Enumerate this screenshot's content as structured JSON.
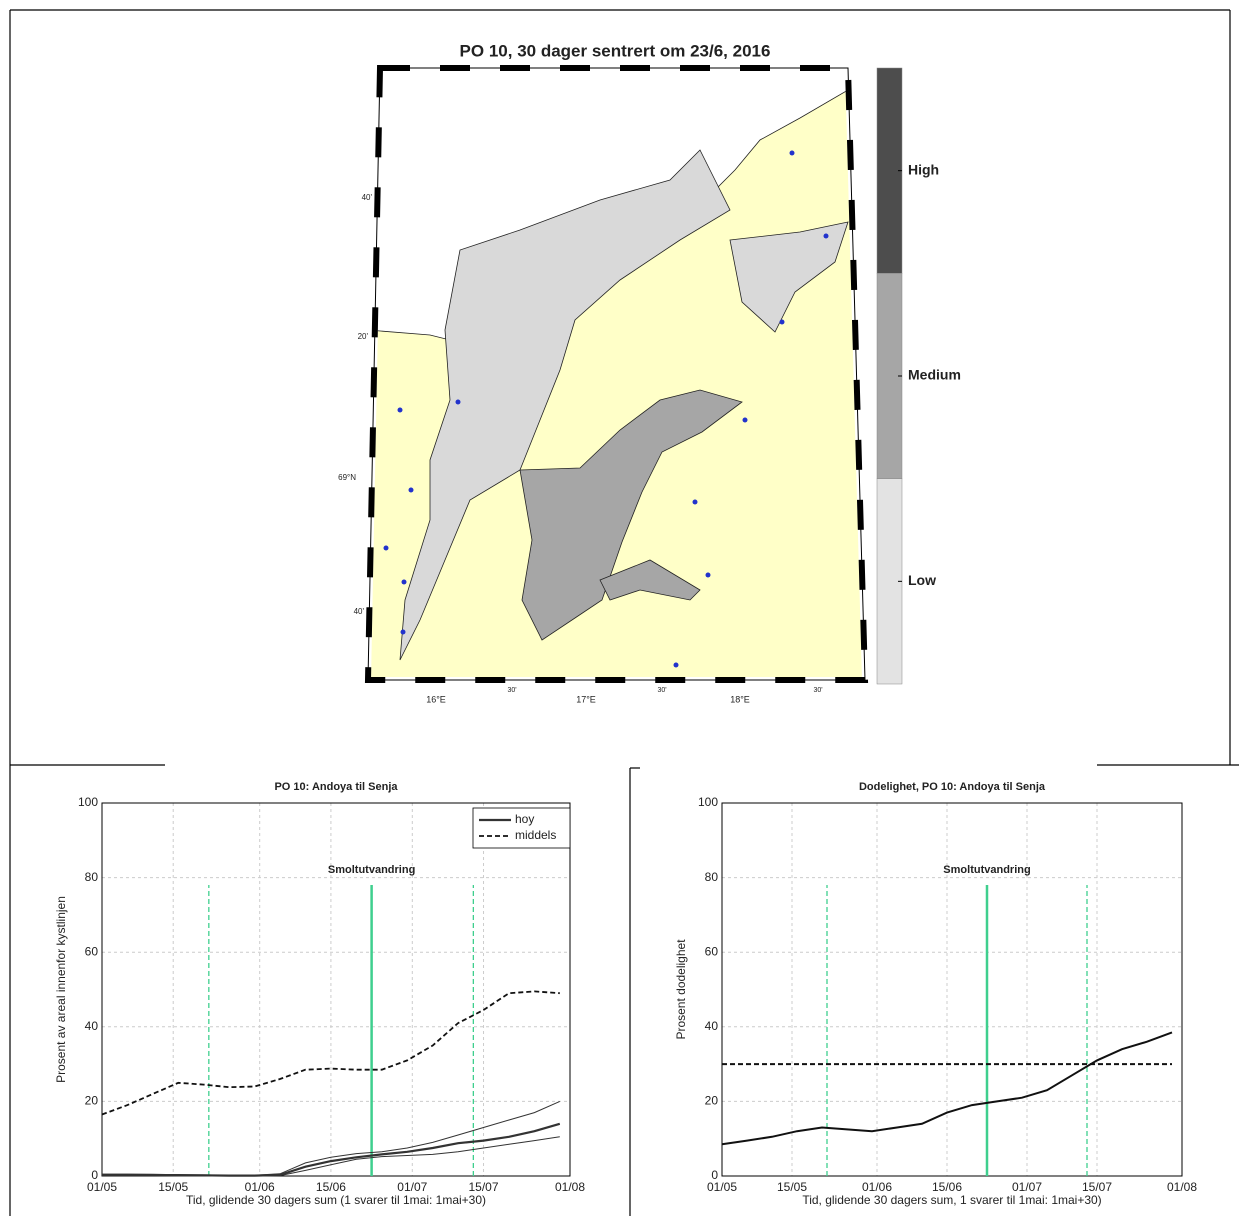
{
  "chart_data": [
    {
      "type": "map",
      "title": "PO 10, 30 dager sentrert om 23/6, 2016",
      "colorbar": {
        "categories": [
          "High",
          "Medium",
          "Low"
        ],
        "colors": [
          "#4d4d4d",
          "#a6a6a6",
          "#e3e3e3"
        ]
      },
      "lat_labels": [
        "40'",
        "20'",
        "69°N",
        "40'"
      ],
      "lon_labels": [
        "16°E",
        "30'",
        "17°E",
        "30'",
        "18°E",
        "30'"
      ]
    },
    {
      "type": "line",
      "title": "PO 10: Andoya til Senja",
      "xlabel": "Tid, glidende 30 dagers sum (1 svarer til 1mai: 1mai+30)",
      "ylabel": "Prosent av areal innenfor kystlinjen",
      "x": [
        0,
        5,
        10,
        15,
        20,
        25,
        30,
        35,
        40,
        45,
        50,
        55,
        60,
        65,
        70,
        75,
        80,
        85,
        90
      ],
      "xlim": [
        0,
        92
      ],
      "xticks": [
        {
          "value": 0,
          "label": "01/05"
        },
        {
          "value": 14,
          "label": "15/05"
        },
        {
          "value": 31,
          "label": "01/06"
        },
        {
          "value": 45,
          "label": "15/06"
        },
        {
          "value": 61,
          "label": "01/07"
        },
        {
          "value": 75,
          "label": "15/07"
        },
        {
          "value": 92,
          "label": "01/08"
        }
      ],
      "ylim": [
        0,
        100
      ],
      "yticks": [
        0,
        20,
        40,
        60,
        80,
        100
      ],
      "grid": true,
      "legend": "upper right",
      "series": [
        {
          "name": "hoy",
          "color": "#333333",
          "linestyle": "solid",
          "linewidth": 2.2,
          "values": [
            0.3,
            0.3,
            0.3,
            0.2,
            0.2,
            0.1,
            0.1,
            0.3,
            2.5,
            4,
            5,
            5.8,
            6.5,
            7.5,
            8.8,
            9.5,
            10.5,
            12,
            14
          ]
        },
        {
          "name": "middels",
          "color": "#111111",
          "linestyle": "dashed",
          "linewidth": 1.8,
          "values": [
            16.5,
            19,
            22,
            25,
            24.5,
            23.8,
            24,
            26,
            28.5,
            28.8,
            28.5,
            28.5,
            31,
            35,
            41,
            44.5,
            49,
            49.5,
            49
          ]
        },
        {
          "color": "#333333",
          "linestyle": "solid",
          "linewidth": 1,
          "values": [
            0.5,
            0.5,
            0.4,
            0.4,
            0.3,
            0.2,
            0.2,
            0.6,
            3.5,
            5,
            6,
            6.5,
            7.5,
            9,
            11,
            13,
            15,
            17,
            20
          ]
        },
        {
          "color": "#333333",
          "linestyle": "solid",
          "linewidth": 1,
          "values": [
            0.1,
            0.1,
            0.1,
            0.1,
            0.1,
            0,
            0,
            0.1,
            1.5,
            3,
            4.5,
            5.2,
            5.5,
            5.8,
            6.5,
            7.5,
            8.5,
            9.5,
            10.5
          ]
        }
      ],
      "vlines": {
        "x": [
          21,
          53,
          73
        ],
        "linestyles": [
          "dashed",
          "solid",
          "dashed"
        ],
        "ymax": 78,
        "color": "#3fcf8e"
      },
      "annotation": {
        "text": "Smoltutvandring",
        "x": 53,
        "y": 82
      }
    },
    {
      "type": "line",
      "title": "Dodelighet, PO 10: Andoya til Senja",
      "xlabel": "Tid, glidende 30 dagers sum, 1 svarer til 1mai: 1mai+30)",
      "ylabel": "Prosent dodelighet",
      "x": [
        0,
        5,
        10,
        15,
        20,
        25,
        30,
        35,
        40,
        45,
        50,
        55,
        60,
        65,
        70,
        75,
        80,
        85,
        90
      ],
      "xlim": [
        0,
        92
      ],
      "xticks": [
        {
          "value": 0,
          "label": "01/05"
        },
        {
          "value": 14,
          "label": "15/05"
        },
        {
          "value": 31,
          "label": "01/06"
        },
        {
          "value": 45,
          "label": "15/06"
        },
        {
          "value": 61,
          "label": "01/07"
        },
        {
          "value": 75,
          "label": "15/07"
        },
        {
          "value": 92,
          "label": "01/08"
        }
      ],
      "ylim": [
        0,
        100
      ],
      "yticks": [
        0,
        20,
        40,
        60,
        80,
        100
      ],
      "grid": true,
      "series": [
        {
          "color": "#111111",
          "linestyle": "solid",
          "linewidth": 2,
          "values": [
            8.5,
            9.5,
            10.5,
            12,
            13,
            12.5,
            12,
            13,
            14,
            17,
            19,
            20,
            21,
            23,
            27,
            31,
            34,
            36,
            38.5
          ]
        }
      ],
      "hline": {
        "y": 30,
        "linestyle": "dashed",
        "color": "#111111"
      },
      "vlines": {
        "x": [
          21,
          53,
          73
        ],
        "linestyles": [
          "dashed",
          "solid",
          "dashed"
        ],
        "ymax": 78,
        "color": "#3fcf8e"
      },
      "annotation": {
        "text": "Smoltutvandring",
        "x": 53,
        "y": 82
      }
    }
  ]
}
